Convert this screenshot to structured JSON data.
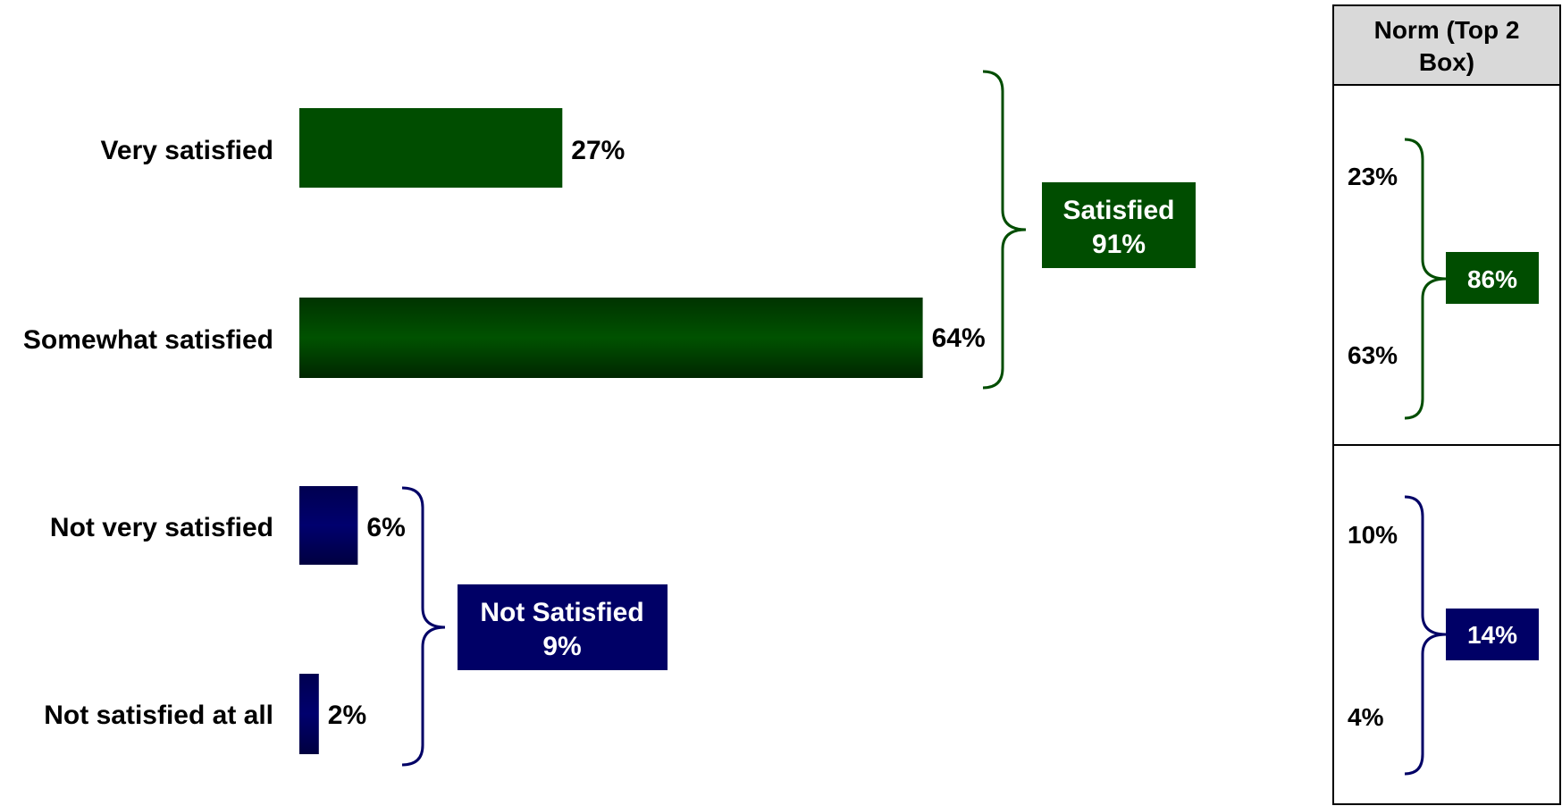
{
  "chart_data": {
    "type": "bar",
    "orientation": "horizontal",
    "categories": [
      "Very satisfied",
      "Somewhat satisfied",
      "Not very satisfied",
      "Not satisfied at all"
    ],
    "values": [
      27,
      64,
      6,
      2
    ],
    "value_labels": [
      "27%",
      "64%",
      "6%",
      "2%"
    ],
    "groups": [
      {
        "label": "Satisfied",
        "value_label": "91%",
        "members": [
          0,
          1
        ],
        "color": "#004d00"
      },
      {
        "label": "Not Satisfied",
        "value_label": "9%",
        "members": [
          2,
          3
        ],
        "color": "#000066"
      }
    ],
    "norm": {
      "header": "Norm (Top 2 Box)",
      "header_lines": [
        "Norm (Top 2",
        "Box)"
      ],
      "values": [
        "23%",
        "63%",
        "10%",
        "4%"
      ],
      "group_totals": [
        "86%",
        "14%"
      ]
    },
    "colors": {
      "satisfied": "#004d00",
      "not_satisfied": "#000066",
      "header_bg": "#d9d9d9"
    }
  }
}
